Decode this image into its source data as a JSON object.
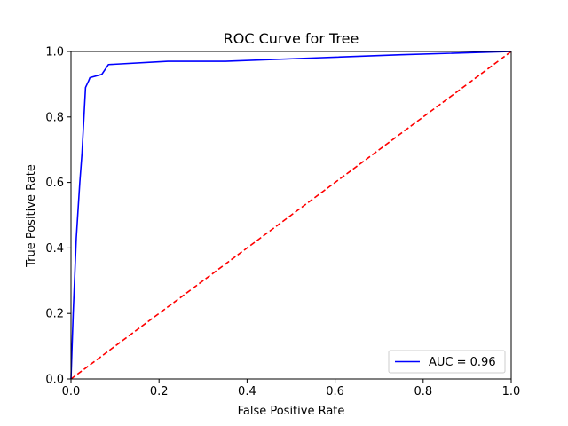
{
  "chart_data": {
    "type": "line",
    "title": "ROC Curve for Tree",
    "xlabel": "False Positive Rate",
    "ylabel": "True Positive Rate",
    "xlim": [
      0,
      1
    ],
    "ylim": [
      0,
      1
    ],
    "x_ticks": [
      "0.0",
      "0.2",
      "0.4",
      "0.6",
      "0.8",
      "1.0"
    ],
    "y_ticks": [
      "0.0",
      "0.2",
      "0.4",
      "0.6",
      "0.8",
      "1.0"
    ],
    "grid": false,
    "legend_position": "lower right",
    "series": [
      {
        "name": "AUC = 0.96",
        "color": "#0000ff",
        "style": "solid",
        "x": [
          0.0,
          0.005,
          0.012,
          0.02,
          0.025,
          0.033,
          0.04,
          0.043,
          0.07,
          0.08,
          0.085,
          0.22,
          0.35,
          0.55,
          0.75,
          1.0
        ],
        "y": [
          0.0,
          0.2,
          0.43,
          0.6,
          0.69,
          0.89,
          0.91,
          0.92,
          0.93,
          0.95,
          0.96,
          0.97,
          0.97,
          0.98,
          0.99,
          1.0
        ]
      },
      {
        "name": "",
        "color": "#ff0000",
        "style": "dashed",
        "x": [
          0.0,
          1.0
        ],
        "y": [
          0.0,
          1.0
        ]
      }
    ]
  }
}
